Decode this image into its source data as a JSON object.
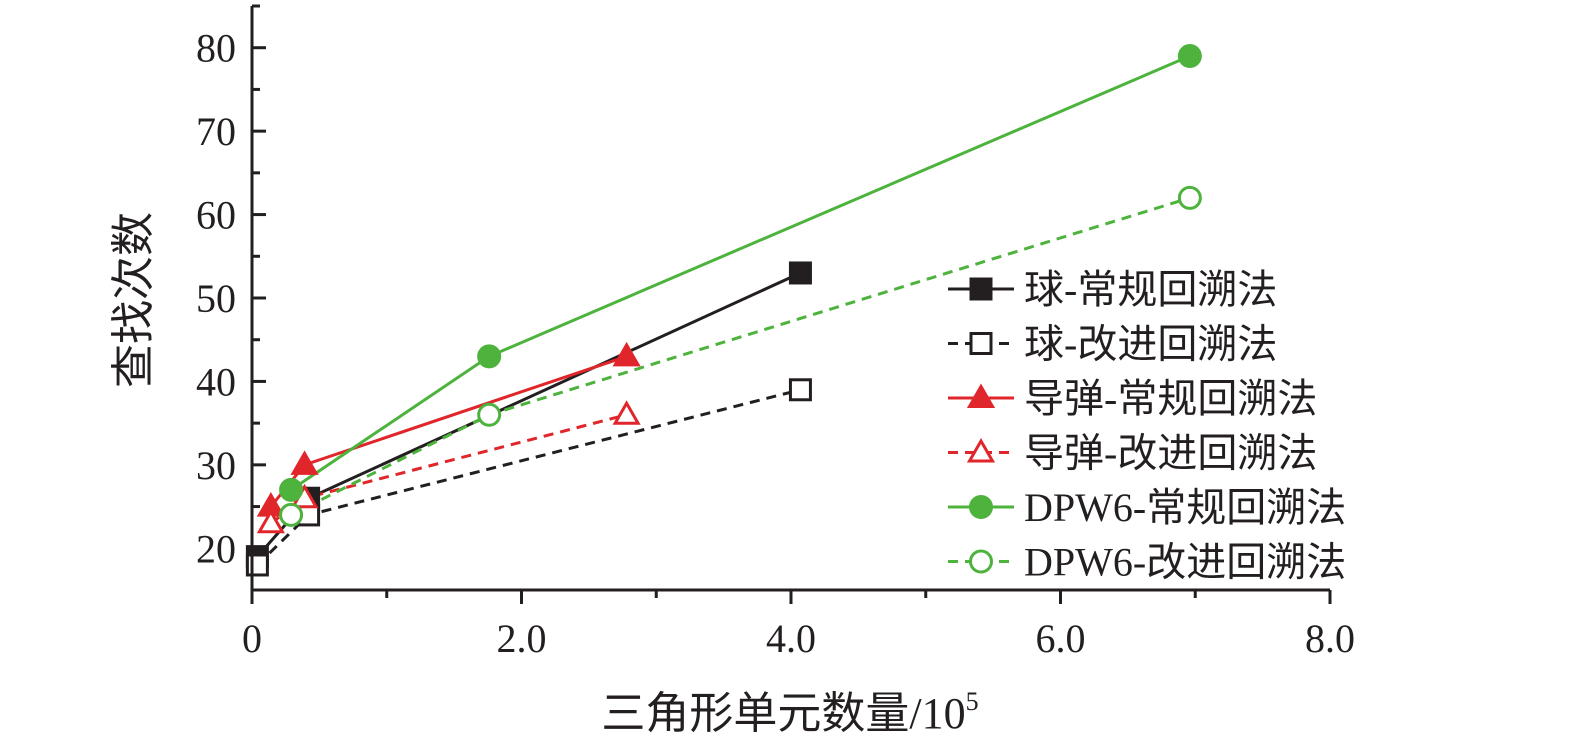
{
  "chart_data": {
    "type": "line",
    "title": "",
    "xlabel": "三角形单元数量/10",
    "xlabel_sup": "5",
    "ylabel": "查找次数",
    "xlim": [
      0,
      8
    ],
    "ylim": [
      15,
      85
    ],
    "x_ticks": [
      0,
      2,
      4,
      6,
      8
    ],
    "x_tick_labels": [
      "0",
      "2.0",
      "4.0",
      "6.0",
      "8.0"
    ],
    "y_ticks": [
      20,
      30,
      40,
      50,
      60,
      70,
      80
    ],
    "y_tick_labels": [
      "20",
      "30",
      "40",
      "50",
      "60",
      "70",
      "80"
    ],
    "grid": false,
    "legend_position": "right",
    "series": [
      {
        "name": "球-常规回溯法",
        "marker": "square",
        "filled": true,
        "dashed": false,
        "color": "#231f20",
        "x": [
          0.04,
          0.42,
          4.07
        ],
        "y": [
          19,
          26,
          53
        ]
      },
      {
        "name": "球-改进回溯法",
        "marker": "square",
        "filled": false,
        "dashed": true,
        "color": "#231f20",
        "x": [
          0.04,
          0.42,
          4.07
        ],
        "y": [
          18,
          24,
          39
        ]
      },
      {
        "name": "导弹-常规回溯法",
        "marker": "triangle",
        "filled": true,
        "dashed": false,
        "color": "#e0262a",
        "x": [
          0.14,
          0.39,
          2.78
        ],
        "y": [
          25,
          30,
          43
        ]
      },
      {
        "name": "导弹-改进回溯法",
        "marker": "triangle",
        "filled": false,
        "dashed": true,
        "color": "#e0262a",
        "x": [
          0.14,
          0.39,
          2.78
        ],
        "y": [
          23,
          26,
          36
        ]
      },
      {
        "name": "DPW6-常规回溯法",
        "marker": "circle",
        "filled": true,
        "dashed": false,
        "color": "#4db33d",
        "x": [
          0.29,
          1.76,
          6.96
        ],
        "y": [
          27,
          43,
          79
        ]
      },
      {
        "name": "DPW6-改进回溯法",
        "marker": "circle",
        "filled": false,
        "dashed": true,
        "color": "#4db33d",
        "x": [
          0.29,
          1.76,
          6.96
        ],
        "y": [
          24,
          36,
          62
        ]
      }
    ]
  }
}
